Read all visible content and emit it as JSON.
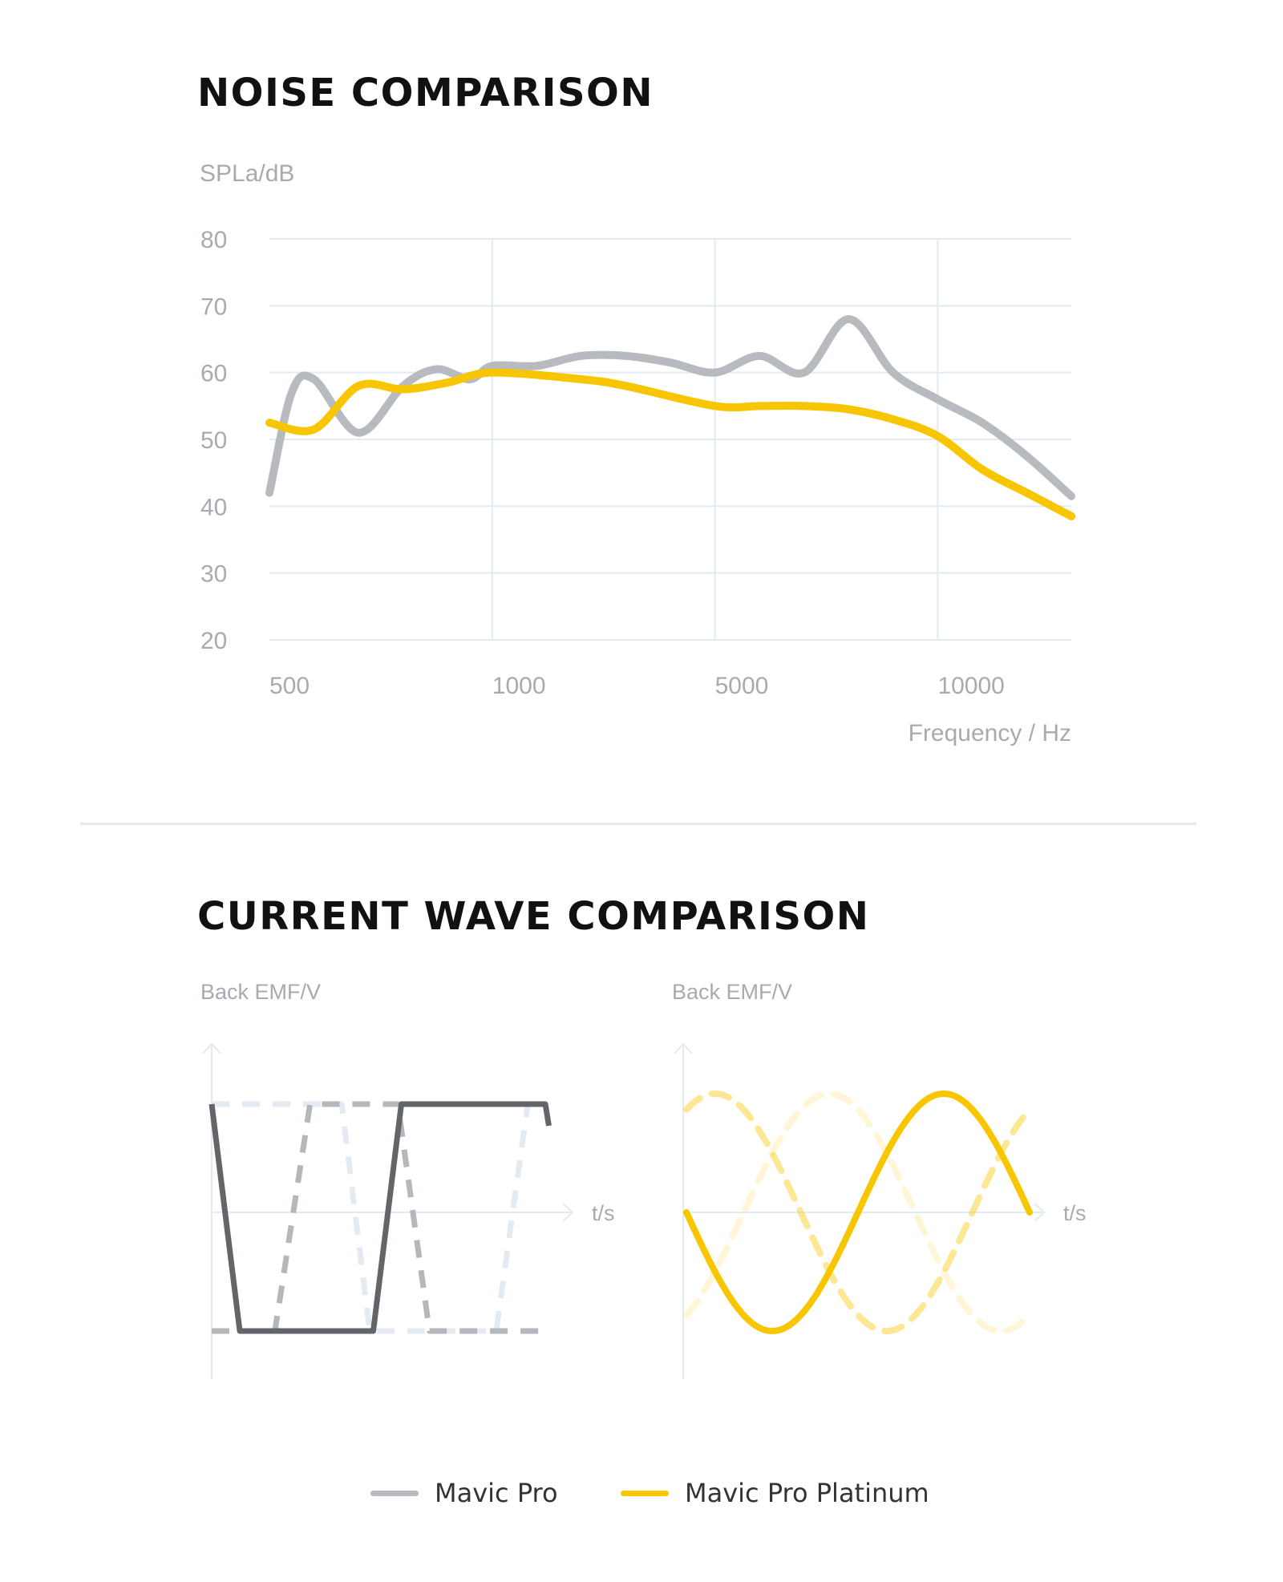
{
  "colors": {
    "mavic_pro": "#b7bbc0",
    "mavic_pro_platinum": "#f7c600",
    "grid": "#e2ebf2",
    "axis_text": "#a7abb0",
    "square_solid": "#626569",
    "square_dash_dark": "#b4b7bb",
    "square_dash_light": "#e4eaf2"
  },
  "noise_section": {
    "title": "NOISE COMPARISON"
  },
  "wave_section": {
    "title": "CURRENT WAVE COMPARISON"
  },
  "chart_data": [
    {
      "type": "line",
      "title": "NOISE COMPARISON",
      "ylabel": "SPLa/dB",
      "xlabel": "Frequency / Hz",
      "ylim": [
        20,
        80
      ],
      "yticks": [
        "80",
        "70",
        "60",
        "50",
        "40",
        "30",
        "20"
      ],
      "xticks": [
        "500",
        "1000",
        "5000",
        "10000"
      ],
      "x_scale": "categorical (uneven)",
      "grid": true,
      "series": [
        {
          "name": "Mavic Pro",
          "points": [
            [
              0.0,
              42
            ],
            [
              0.1,
              57
            ],
            [
              0.2,
              59
            ],
            [
              0.4,
              51
            ],
            [
              0.6,
              58
            ],
            [
              0.75,
              60.5
            ],
            [
              0.9,
              59
            ],
            [
              1.0,
              61
            ],
            [
              1.2,
              61
            ],
            [
              1.4,
              62.5
            ],
            [
              1.6,
              62.5
            ],
            [
              1.8,
              61.5
            ],
            [
              2.0,
              60
            ],
            [
              2.2,
              62.5
            ],
            [
              2.4,
              60
            ],
            [
              2.6,
              68
            ],
            [
              2.8,
              60
            ],
            [
              3.0,
              56
            ],
            [
              3.2,
              52.5
            ],
            [
              3.4,
              47.5
            ],
            [
              3.6,
              41.5
            ]
          ]
        },
        {
          "name": "Mavic Pro Platinum",
          "points": [
            [
              0.0,
              52.5
            ],
            [
              0.2,
              51.5
            ],
            [
              0.4,
              58
            ],
            [
              0.6,
              57.5
            ],
            [
              0.8,
              58.5
            ],
            [
              1.0,
              60
            ],
            [
              1.4,
              59
            ],
            [
              1.6,
              58
            ],
            [
              2.0,
              55
            ],
            [
              2.2,
              55
            ],
            [
              2.4,
              55
            ],
            [
              2.6,
              54.5
            ],
            [
              2.8,
              53
            ],
            [
              3.0,
              50.5
            ],
            [
              3.2,
              45.5
            ],
            [
              3.4,
              42
            ],
            [
              3.6,
              38.5
            ]
          ]
        }
      ]
    },
    {
      "type": "line",
      "title": "CURRENT WAVE COMPARISON",
      "subtitle": "Mavic Pro",
      "ylabel": "Back EMF/V",
      "xlabel": "t/s",
      "waveform": "trapezoidal (square)",
      "series": [
        {
          "name": "Mavic Pro",
          "style": "solid",
          "x": [
            0,
            0.08,
            0.46,
            0.54,
            0.95,
            0.96
          ],
          "y": [
            1,
            -1,
            -1,
            1,
            1,
            0.8
          ]
        },
        {
          "style": "dashed",
          "x": [
            0,
            0.18,
            0.28,
            0.53,
            0.62,
            0.95
          ],
          "y": [
            -1,
            -1,
            1,
            1,
            -1,
            -1
          ]
        },
        {
          "style": "dashed-light",
          "x": [
            0,
            0.37,
            0.45,
            0.81,
            0.9,
            0.95
          ],
          "y": [
            1,
            1,
            -1,
            -1,
            1,
            1
          ]
        }
      ]
    },
    {
      "type": "line",
      "title": "CURRENT WAVE COMPARISON",
      "subtitle": "Mavic Pro Platinum",
      "ylabel": "Back EMF/V",
      "xlabel": "t/s",
      "waveform": "sinusoidal",
      "series": [
        {
          "name": "Mavic Pro Platinum",
          "style": "solid",
          "phase_deg": 180
        },
        {
          "style": "dashed",
          "phase_deg": 60
        },
        {
          "style": "dashed-light",
          "phase_deg": 300
        }
      ]
    }
  ],
  "legend": [
    {
      "label": "Mavic Pro",
      "color": "#b7bbc0"
    },
    {
      "label": "Mavic Pro Platinum",
      "color": "#f7c600"
    }
  ]
}
